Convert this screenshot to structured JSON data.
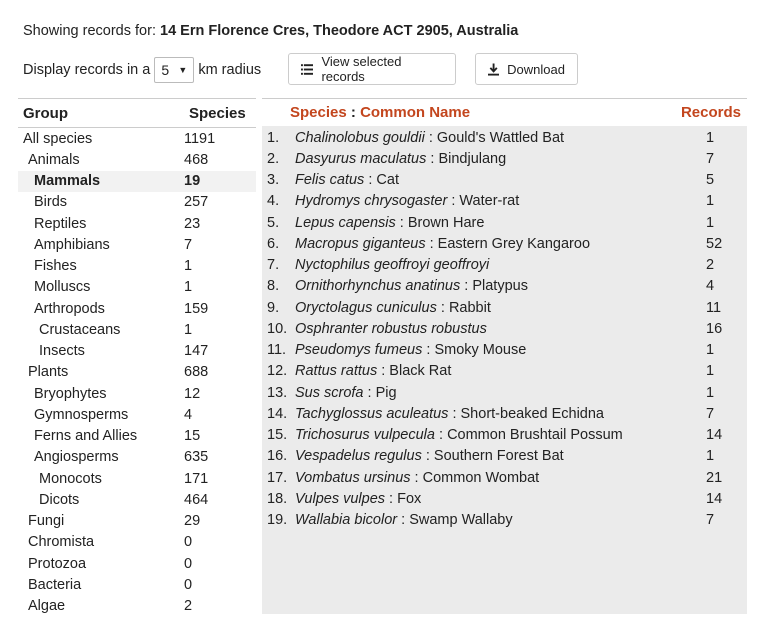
{
  "header": {
    "prefix": "Showing records for: ",
    "address": "14 Ern Florence Cres, Theodore ACT 2905, Australia"
  },
  "radius": {
    "label_before": "Display records in a",
    "value": "5",
    "label_after": "km radius"
  },
  "buttons": {
    "view_selected": "View selected records",
    "download": "Download"
  },
  "groups_table": {
    "header_group": "Group",
    "header_species": "Species",
    "rows": [
      {
        "name": "All species",
        "count": "1191",
        "level": 0,
        "selected": false
      },
      {
        "name": "Animals",
        "count": "468",
        "level": 1,
        "selected": false
      },
      {
        "name": "Mammals",
        "count": "19",
        "level": 2,
        "selected": true
      },
      {
        "name": "Birds",
        "count": "257",
        "level": 2,
        "selected": false
      },
      {
        "name": "Reptiles",
        "count": "23",
        "level": 2,
        "selected": false
      },
      {
        "name": "Amphibians",
        "count": "7",
        "level": 2,
        "selected": false
      },
      {
        "name": "Fishes",
        "count": "1",
        "level": 2,
        "selected": false
      },
      {
        "name": "Molluscs",
        "count": "1",
        "level": 2,
        "selected": false
      },
      {
        "name": "Arthropods",
        "count": "159",
        "level": 2,
        "selected": false
      },
      {
        "name": "Crustaceans",
        "count": "1",
        "level": 3,
        "selected": false
      },
      {
        "name": "Insects",
        "count": "147",
        "level": 3,
        "selected": false
      },
      {
        "name": "Plants",
        "count": "688",
        "level": 1,
        "selected": false
      },
      {
        "name": "Bryophytes",
        "count": "12",
        "level": 2,
        "selected": false
      },
      {
        "name": "Gymnosperms",
        "count": "4",
        "level": 2,
        "selected": false
      },
      {
        "name": "Ferns and Allies",
        "count": "15",
        "level": 2,
        "selected": false
      },
      {
        "name": "Angiosperms",
        "count": "635",
        "level": 2,
        "selected": false
      },
      {
        "name": "Monocots",
        "count": "171",
        "level": 3,
        "selected": false
      },
      {
        "name": "Dicots",
        "count": "464",
        "level": 3,
        "selected": false
      },
      {
        "name": "Fungi",
        "count": "29",
        "level": 1,
        "selected": false
      },
      {
        "name": "Chromista",
        "count": "0",
        "level": 1,
        "selected": false
      },
      {
        "name": "Protozoa",
        "count": "0",
        "level": 1,
        "selected": false
      },
      {
        "name": "Bacteria",
        "count": "0",
        "level": 1,
        "selected": false
      },
      {
        "name": "Algae",
        "count": "2",
        "level": 1,
        "selected": false
      }
    ]
  },
  "species_table": {
    "header_species": "Species",
    "header_sep": " : ",
    "header_common": "Common Name",
    "header_records": "Records",
    "rows": [
      {
        "num": "1.",
        "sci": "Chalinolobus gouldii",
        "common": "Gould's Wattled Bat",
        "records": "1"
      },
      {
        "num": "2.",
        "sci": "Dasyurus maculatus",
        "common": "Bindjulang",
        "records": "7"
      },
      {
        "num": "3.",
        "sci": "Felis catus",
        "common": "Cat",
        "records": "5"
      },
      {
        "num": "4.",
        "sci": "Hydromys chrysogaster",
        "common": "Water-rat",
        "records": "1"
      },
      {
        "num": "5.",
        "sci": "Lepus capensis",
        "common": "Brown Hare",
        "records": "1"
      },
      {
        "num": "6.",
        "sci": "Macropus giganteus",
        "common": "Eastern Grey Kangaroo",
        "records": "52"
      },
      {
        "num": "7.",
        "sci": "Nyctophilus geoffroyi geoffroyi",
        "common": "",
        "records": "2"
      },
      {
        "num": "8.",
        "sci": "Ornithorhynchus anatinus",
        "common": "Platypus",
        "records": "4"
      },
      {
        "num": "9.",
        "sci": "Oryctolagus cuniculus",
        "common": "Rabbit",
        "records": "11"
      },
      {
        "num": "10.",
        "sci": "Osphranter robustus robustus",
        "common": "",
        "records": "16"
      },
      {
        "num": "11.",
        "sci": "Pseudomys fumeus",
        "common": "Smoky Mouse",
        "records": "1"
      },
      {
        "num": "12.",
        "sci": "Rattus rattus",
        "common": "Black Rat",
        "records": "1"
      },
      {
        "num": "13.",
        "sci": "Sus scrofa",
        "common": "Pig",
        "records": "1"
      },
      {
        "num": "14.",
        "sci": "Tachyglossus aculeatus",
        "common": "Short-beaked Echidna",
        "records": "7"
      },
      {
        "num": "15.",
        "sci": "Trichosurus vulpecula",
        "common": "Common Brushtail Possum",
        "records": "14"
      },
      {
        "num": "16.",
        "sci": "Vespadelus regulus",
        "common": "Southern Forest Bat",
        "records": "1"
      },
      {
        "num": "17.",
        "sci": "Vombatus ursinus",
        "common": "Common Wombat",
        "records": "21"
      },
      {
        "num": "18.",
        "sci": "Vulpes vulpes",
        "common": "Fox",
        "records": "14"
      },
      {
        "num": "19.",
        "sci": "Wallabia bicolor",
        "common": "Swamp Wallaby",
        "records": "7"
      }
    ]
  },
  "colors": {
    "accent": "#c3461e",
    "selected_bg": "#f2f2f2",
    "panel_bg": "#ebebeb"
  },
  "icons": {
    "view_selected": "list-icon",
    "download": "download-icon"
  }
}
